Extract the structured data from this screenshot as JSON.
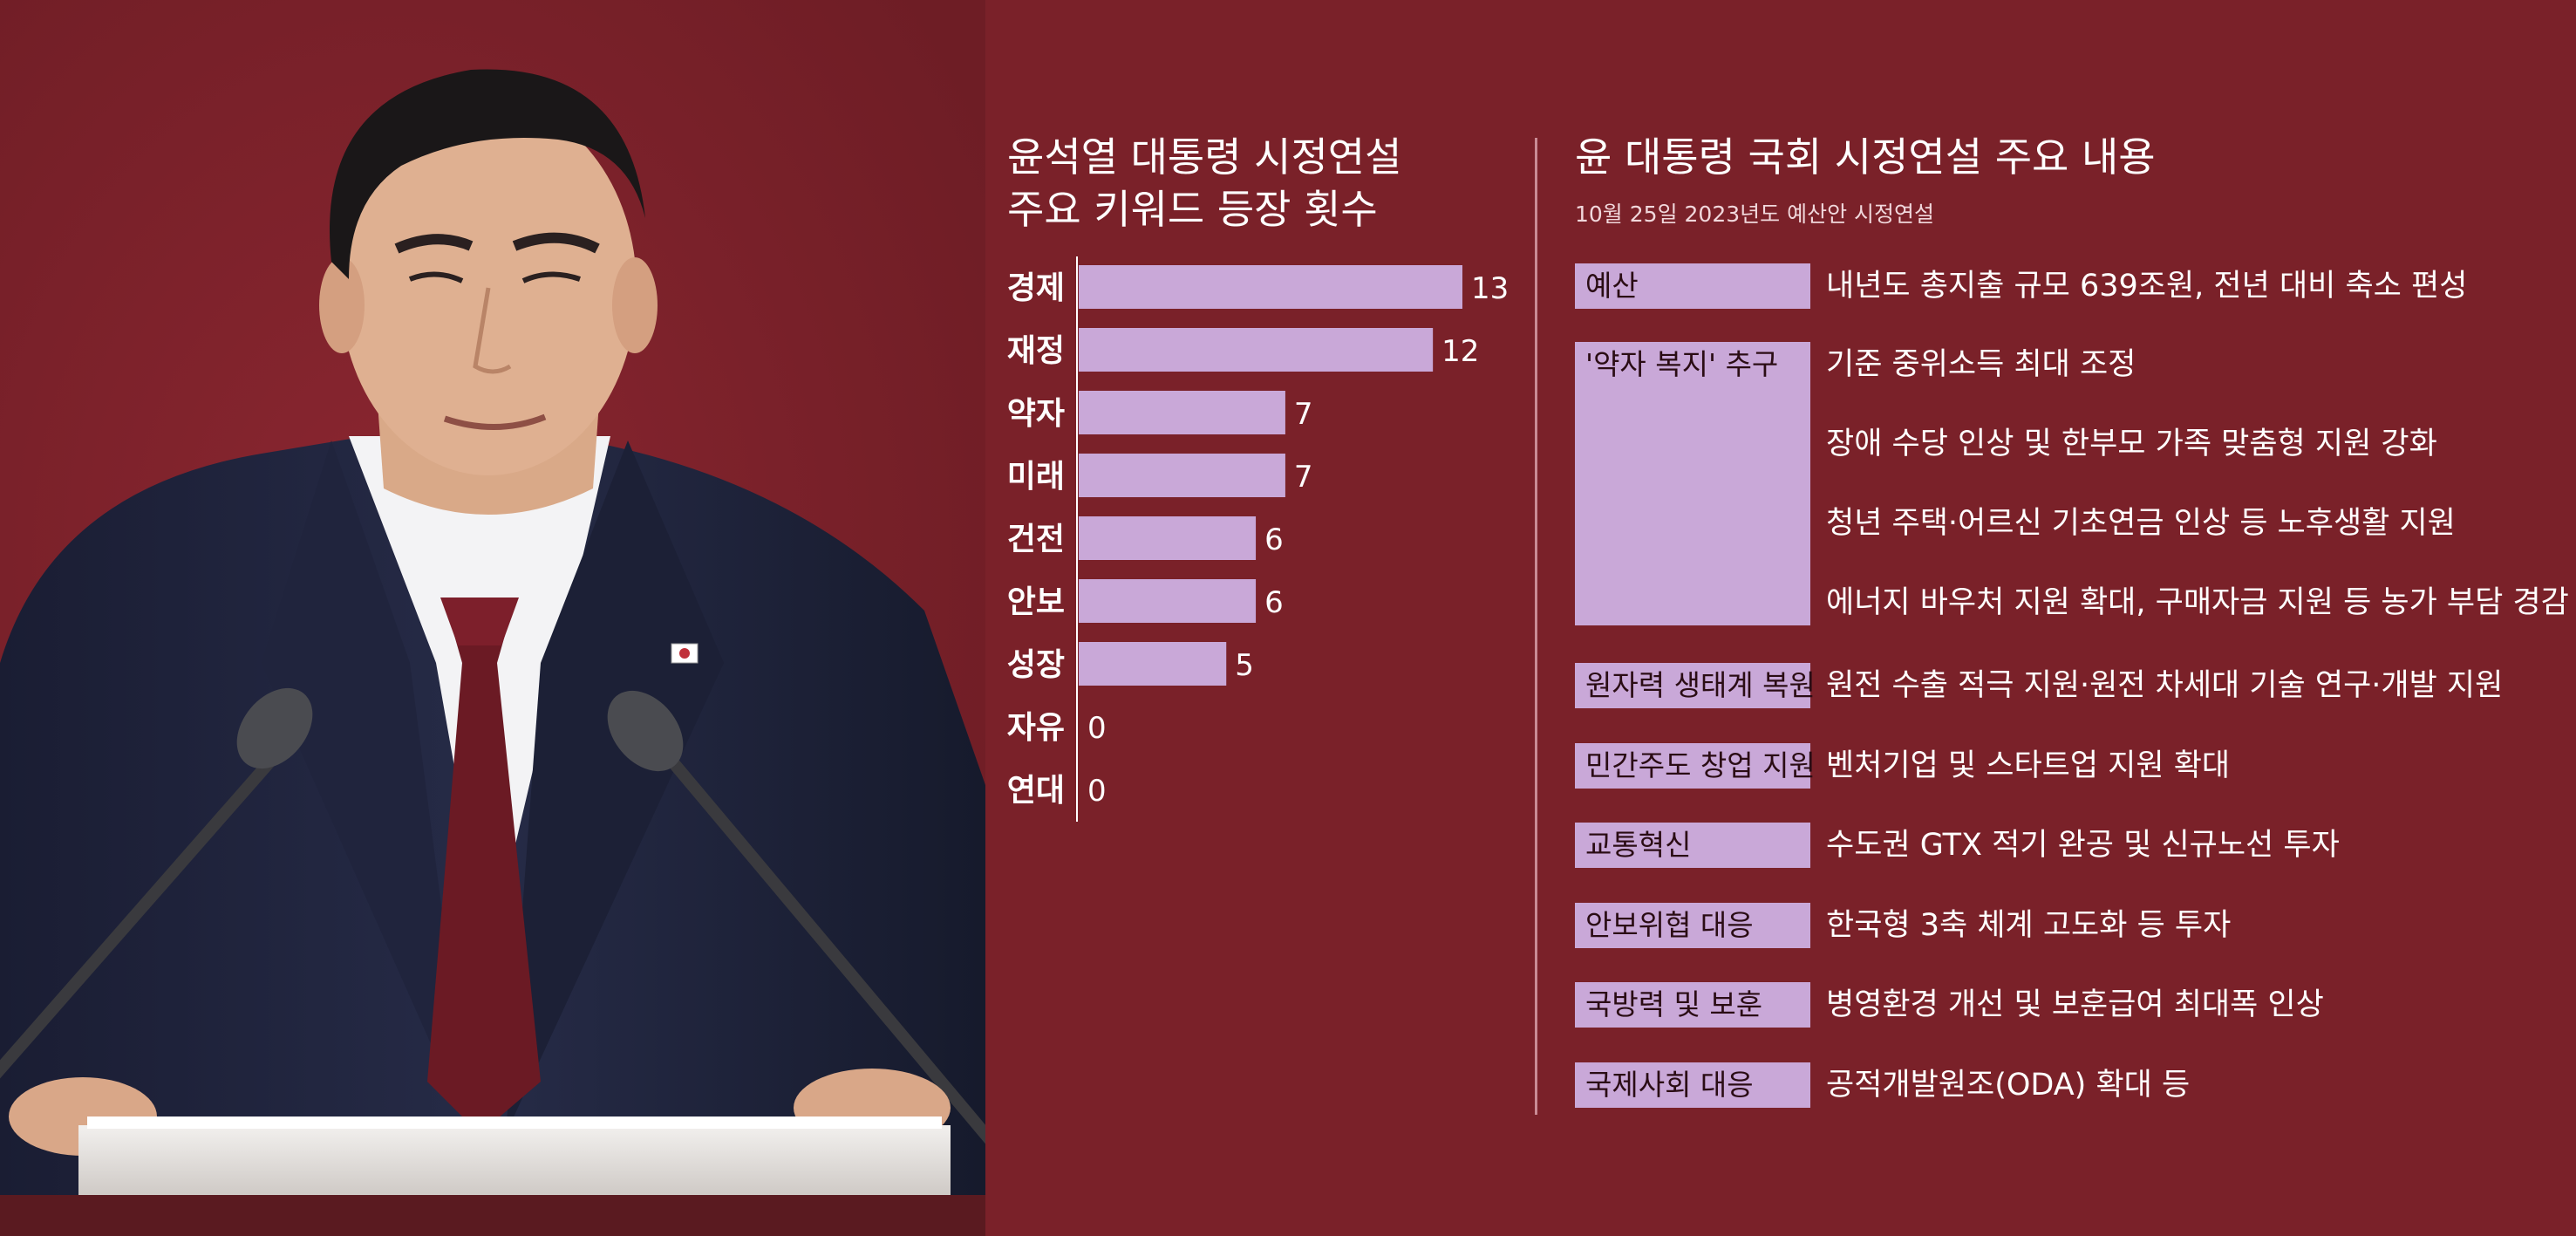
{
  "chart_data": {
    "type": "bar",
    "orientation": "horizontal",
    "title_lines": [
      "윤석열 대통령 시정연설",
      "주요 키워드 등장 횟수"
    ],
    "categories": [
      "경제",
      "재정",
      "약자",
      "미래",
      "건전",
      "안보",
      "성장",
      "자유",
      "연대"
    ],
    "values": [
      13,
      12,
      7,
      7,
      6,
      6,
      5,
      0,
      0
    ],
    "xlim": [
      0,
      13
    ],
    "grid": false,
    "legend": "none",
    "bar_color": "#c9a8d8"
  },
  "summary": {
    "title": "윤 대통령 국회 시정연설 주요 내용",
    "subtitle": "10월 25일 2023년도 예산안 시정연설",
    "sections": [
      {
        "tag": "예산",
        "items": [
          "내년도 총지출 규모 639조원, 전년 대비 축소 편성"
        ]
      },
      {
        "tag": "'약자 복지' 추구",
        "items": [
          "기준 중위소득 최대 조정",
          "장애 수당 인상 및 한부모 가족 맞춤형 지원 강화",
          "청년 주택·어르신 기초연금 인상 등 노후생활 지원",
          "에너지 바우처 지원 확대, 구매자금 지원 등 농가 부담 경감"
        ]
      },
      {
        "tag": "원자력 생태계 복원",
        "items": [
          "원전 수출 적극 지원·원전 차세대 기술 연구·개발 지원"
        ]
      },
      {
        "tag": "민간주도 창업 지원",
        "items": [
          "벤처기업 및 스타트업 지원 확대"
        ]
      },
      {
        "tag": "교통혁신",
        "items": [
          "수도권 GTX 적기 완공 및 신규노선 투자"
        ]
      },
      {
        "tag": "안보위협 대응",
        "items": [
          "한국형 3축 체계 고도화 등 투자"
        ]
      },
      {
        "tag": "국방력 및 보훈",
        "items": [
          "병영환경 개선 및 보훈급여 최대폭 인상"
        ]
      },
      {
        "tag": "국제사회 대응",
        "items": [
          "공적개발원조(ODA) 확대 등"
        ]
      }
    ]
  },
  "colors": {
    "background": "#7a2129",
    "tag_fill": "#c9a8d8",
    "text": "#ffffff"
  }
}
